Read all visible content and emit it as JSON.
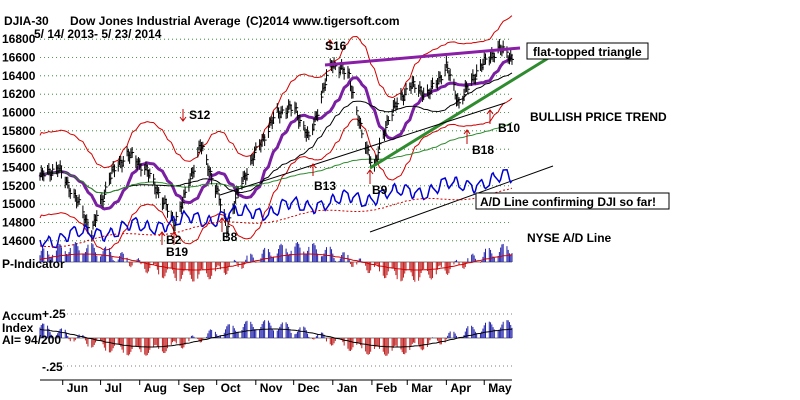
{
  "chart_data": {
    "type": "line",
    "header": {
      "symbol": "DJIA-30",
      "name": "Dow Jones Industrial Average",
      "copyright": "(C)2014 www.tigersoft.com",
      "range": "5/ 14/ 2013- 5/ 23/ 2014"
    },
    "price_axis": {
      "ticks": [
        "16800",
        "16600",
        "16400",
        "16200",
        "16000",
        "15800",
        "15600",
        "15400",
        "15200",
        "15000",
        "14800",
        "14600"
      ],
      "ylim": [
        14500,
        16900
      ]
    },
    "months": [
      "Jun",
      "Jul",
      "Aug",
      "Sep",
      "Oct",
      "Nov",
      "Dec",
      "Jan",
      "Feb",
      "Mar",
      "Apr",
      "May"
    ],
    "price_series": {
      "name": "DJIA",
      "x": [
        "2013-05-14",
        "2013-05-28",
        "2013-06-10",
        "2013-06-24",
        "2013-07-08",
        "2013-07-22",
        "2013-08-05",
        "2013-08-19",
        "2013-08-28",
        "2013-09-05",
        "2013-09-18",
        "2013-10-01",
        "2013-10-09",
        "2013-10-21",
        "2013-11-04",
        "2013-11-18",
        "2013-12-02",
        "2013-12-13",
        "2013-12-31",
        "2014-01-14",
        "2014-01-24",
        "2014-02-03",
        "2014-02-14",
        "2014-03-03",
        "2014-03-18",
        "2014-04-01",
        "2014-04-11",
        "2014-04-25",
        "2014-05-12",
        "2014-05-23"
      ],
      "y": [
        15300,
        15400,
        15100,
        14700,
        15300,
        15550,
        15400,
        15050,
        14800,
        15050,
        15650,
        15150,
        14750,
        15250,
        15650,
        16000,
        16050,
        15700,
        16550,
        16400,
        15750,
        15400,
        15950,
        16300,
        16200,
        16500,
        16100,
        16450,
        16700,
        16600
      ]
    },
    "annotations": {
      "signals": [
        "S16",
        "S12",
        "B2",
        "B19",
        "B8",
        "B13",
        "B9",
        "B10",
        "B18"
      ],
      "notes": [
        "flat-topped triangle",
        "BULLISH PRICE TREND",
        "A/D Line confirming DJI so far!",
        "NYSE A/D Line"
      ]
    },
    "panels": {
      "p_indicator": {
        "label": "P-Indicator"
      },
      "accum_index": {
        "label_1": "Accum",
        "label_2": "Index",
        "label_3": "AI= 94/200",
        "ticks": [
          "+.25",
          "-.25"
        ]
      }
    }
  }
}
